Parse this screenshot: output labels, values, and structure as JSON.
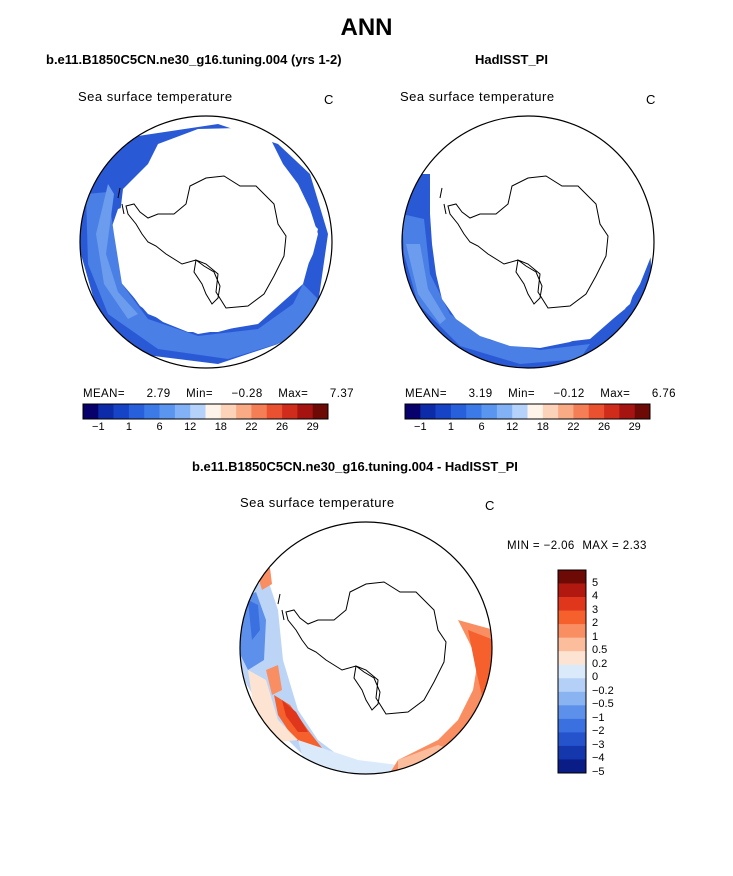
{
  "title": "ANN",
  "panels": [
    {
      "title": "b.e11.B1850C5CN.ne30_g16.tuning.004 (yrs 1-2)",
      "variable": "Sea surface temperature",
      "units": "C",
      "stats": {
        "mean_label": "MEAN=",
        "mean": "2.79",
        "min_label": "Min=",
        "min": "−0.28",
        "max_label": "Max=",
        "max": "7.37"
      }
    },
    {
      "title": "HadISST_PI",
      "variable": "Sea surface temperature",
      "units": "C",
      "stats": {
        "mean_label": "MEAN=",
        "mean": "3.19",
        "min_label": "Min=",
        "min": "−0.12",
        "max_label": "Max=",
        "max": "6.76"
      }
    }
  ],
  "sst_colorbar": {
    "colors": [
      "#08006b",
      "#0b2ba8",
      "#1744c6",
      "#2860dc",
      "#3c7ae8",
      "#5a95ef",
      "#82b2f5",
      "#b4d2fa",
      "#fff4ea",
      "#fcd2b9",
      "#f9ab86",
      "#f47e55",
      "#ea5130",
      "#d02c1c",
      "#a51410",
      "#6e0a06"
    ],
    "tick_labels": [
      "−1",
      "1",
      "6",
      "12",
      "18",
      "22",
      "26",
      "29"
    ]
  },
  "difference_panel": {
    "title": "b.e11.B1850C5CN.ne30_g16.tuning.004 - HadISST_PI",
    "variable": "Sea surface temperature",
    "units": "C",
    "min_label": "MIN =",
    "min": "−2.06",
    "max_label": "MAX =",
    "max": "2.33",
    "colorbar": {
      "colors": [
        "#6e0a06",
        "#b01810",
        "#e0361b",
        "#f5602c",
        "#f98e62",
        "#fbbd9c",
        "#fde4d2",
        "#dbeafb",
        "#b4d0f7",
        "#8ab3f2",
        "#5c90ea",
        "#3a70df",
        "#2453cc",
        "#1437ad",
        "#0a1c85"
      ],
      "tick_labels": [
        "5",
        "4",
        "3",
        "2",
        "1",
        "0.5",
        "0.2",
        "0",
        "−0.2",
        "−0.5",
        "−1",
        "−2",
        "−3",
        "−4",
        "−5"
      ]
    }
  }
}
